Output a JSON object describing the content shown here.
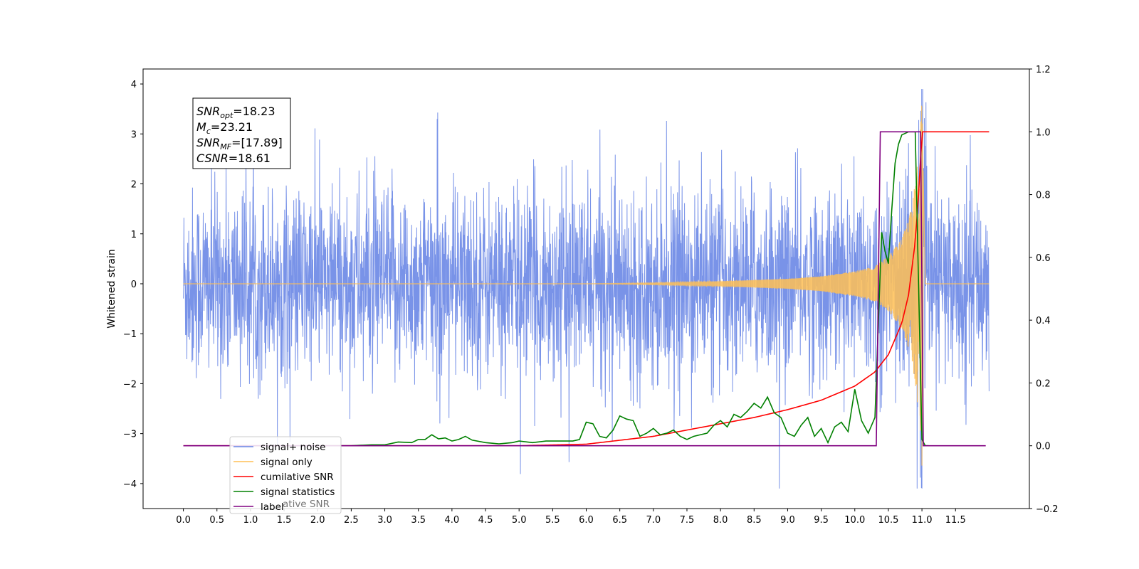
{
  "chart_data": {
    "type": "line",
    "ylabel_left": "Whitened strain",
    "xlim": [
      -0.6,
      12.6
    ],
    "ylim_left": [
      -4.5,
      4.3
    ],
    "ylim_right": [
      -0.2,
      1.2
    ],
    "x_ticks": [
      "0.0",
      "0.5",
      "1.0",
      "1.5",
      "2.0",
      "2.5",
      "3.0",
      "3.5",
      "4.0",
      "4.5",
      "5.0",
      "5.5",
      "6.0",
      "6.5",
      "7.0",
      "7.5",
      "8.0",
      "8.5",
      "9.0",
      "9.5",
      "10.0",
      "10.5",
      "11.0",
      "11.5"
    ],
    "y_ticks_left": [
      "4",
      "3",
      "2",
      "1",
      "0",
      "−1",
      "−2",
      "−3",
      "−4"
    ],
    "y_ticks_right": [
      "1.2",
      "1.0",
      "0.8",
      "0.6",
      "0.4",
      "0.2",
      "0.0",
      "−0.2"
    ],
    "grid": false,
    "legend_position": "lower-left",
    "colors": {
      "signal_noise": "#6a87e6",
      "signal_only": "#ffbf55",
      "cumulative_snr": "#ff0000",
      "signal_statistics": "#008000",
      "label": "#800080"
    },
    "series": [
      {
        "name": "signal+ noise",
        "axis": "left",
        "description_values": {
          "x_range": [
            0.0,
            12.0
          ],
          "typical_amplitude": [
            -2.2,
            2.2
          ],
          "max": 3.9,
          "min": -4.1
        }
      },
      {
        "name": "signal only",
        "axis": "left",
        "x": [
          0.0,
          6.0,
          7.0,
          8.0,
          9.0,
          9.5,
          10.0,
          10.3,
          10.5,
          10.7,
          10.85,
          10.95,
          11.0,
          11.05,
          12.0
        ],
        "amplitude": [
          0.0,
          0.0,
          0.02,
          0.05,
          0.1,
          0.15,
          0.25,
          0.35,
          0.55,
          0.9,
          1.5,
          2.6,
          3.65,
          0.0,
          0.0
        ]
      },
      {
        "name": "cumilative SNR",
        "axis": "right",
        "x": [
          0.0,
          5.0,
          6.0,
          7.0,
          8.0,
          8.5,
          9.0,
          9.5,
          10.0,
          10.3,
          10.5,
          10.7,
          10.8,
          10.9,
          10.95,
          11.0,
          12.0
        ],
        "y": [
          0.0,
          0.0,
          0.005,
          0.03,
          0.07,
          0.09,
          0.115,
          0.145,
          0.19,
          0.235,
          0.29,
          0.39,
          0.48,
          0.65,
          0.8,
          1.0,
          1.0
        ]
      },
      {
        "name": "signal statistics",
        "axis": "right",
        "x": [
          2.0,
          2.5,
          2.8,
          3.0,
          3.2,
          3.4,
          3.5,
          3.6,
          3.7,
          3.8,
          3.9,
          4.0,
          4.1,
          4.2,
          4.3,
          4.5,
          4.7,
          4.9,
          5.0,
          5.2,
          5.4,
          5.6,
          5.8,
          5.9,
          6.0,
          6.1,
          6.2,
          6.3,
          6.4,
          6.5,
          6.6,
          6.7,
          6.8,
          6.9,
          7.0,
          7.1,
          7.2,
          7.3,
          7.4,
          7.5,
          7.6,
          7.7,
          7.8,
          7.9,
          8.0,
          8.1,
          8.2,
          8.3,
          8.4,
          8.5,
          8.6,
          8.7,
          8.8,
          8.9,
          9.0,
          9.1,
          9.2,
          9.3,
          9.4,
          9.5,
          9.6,
          9.7,
          9.8,
          9.9,
          10.0,
          10.1,
          10.2,
          10.3,
          10.4,
          10.45,
          10.5,
          10.55,
          10.6,
          10.65,
          10.7,
          10.8,
          10.9,
          11.0,
          11.05,
          11.1
        ],
        "y": [
          0.0,
          0.0,
          0.003,
          0.003,
          0.012,
          0.01,
          0.02,
          0.02,
          0.035,
          0.022,
          0.025,
          0.015,
          0.02,
          0.03,
          0.018,
          0.01,
          0.006,
          0.01,
          0.015,
          0.01,
          0.015,
          0.015,
          0.015,
          0.02,
          0.075,
          0.07,
          0.03,
          0.025,
          0.05,
          0.095,
          0.085,
          0.08,
          0.03,
          0.04,
          0.055,
          0.035,
          0.04,
          0.05,
          0.03,
          0.02,
          0.03,
          0.035,
          0.04,
          0.065,
          0.08,
          0.06,
          0.1,
          0.09,
          0.11,
          0.135,
          0.12,
          0.155,
          0.105,
          0.09,
          0.04,
          0.03,
          0.065,
          0.09,
          0.03,
          0.055,
          0.01,
          0.06,
          0.075,
          0.045,
          0.18,
          0.08,
          0.04,
          0.09,
          0.68,
          0.62,
          0.58,
          0.75,
          0.9,
          0.96,
          0.99,
          1.0,
          1.0,
          0.02,
          0.0,
          0.0
        ]
      },
      {
        "name": "label",
        "axis": "right",
        "x": [
          0.0,
          10.32,
          10.38,
          10.98,
          11.02,
          11.95
        ],
        "y": [
          0.0,
          0.0,
          1.0,
          1.0,
          0.0,
          0.0
        ]
      }
    ],
    "legend_entries": [
      {
        "label": "signal+ noise",
        "color": "#6a87e6"
      },
      {
        "label": "signal only",
        "color": "#ffbf55"
      },
      {
        "label": "cumilative SNR",
        "color": "#ff0000"
      },
      {
        "label": "signal statistics",
        "color": "#008000"
      },
      {
        "label": "label",
        "color": "#800080"
      }
    ],
    "legend_overlap_ghost_text": "ative SNR",
    "annotation": {
      "lines": [
        {
          "main": "SNR",
          "sub": "opt",
          "rest": "=18.23"
        },
        {
          "main": "M",
          "sub": "c",
          "rest": "=23.21"
        },
        {
          "main": "SNR",
          "sub": "MF",
          "rest": "=[17.89]"
        },
        {
          "main": "CSNR",
          "sub": "",
          "rest": "=18.61"
        }
      ]
    }
  }
}
